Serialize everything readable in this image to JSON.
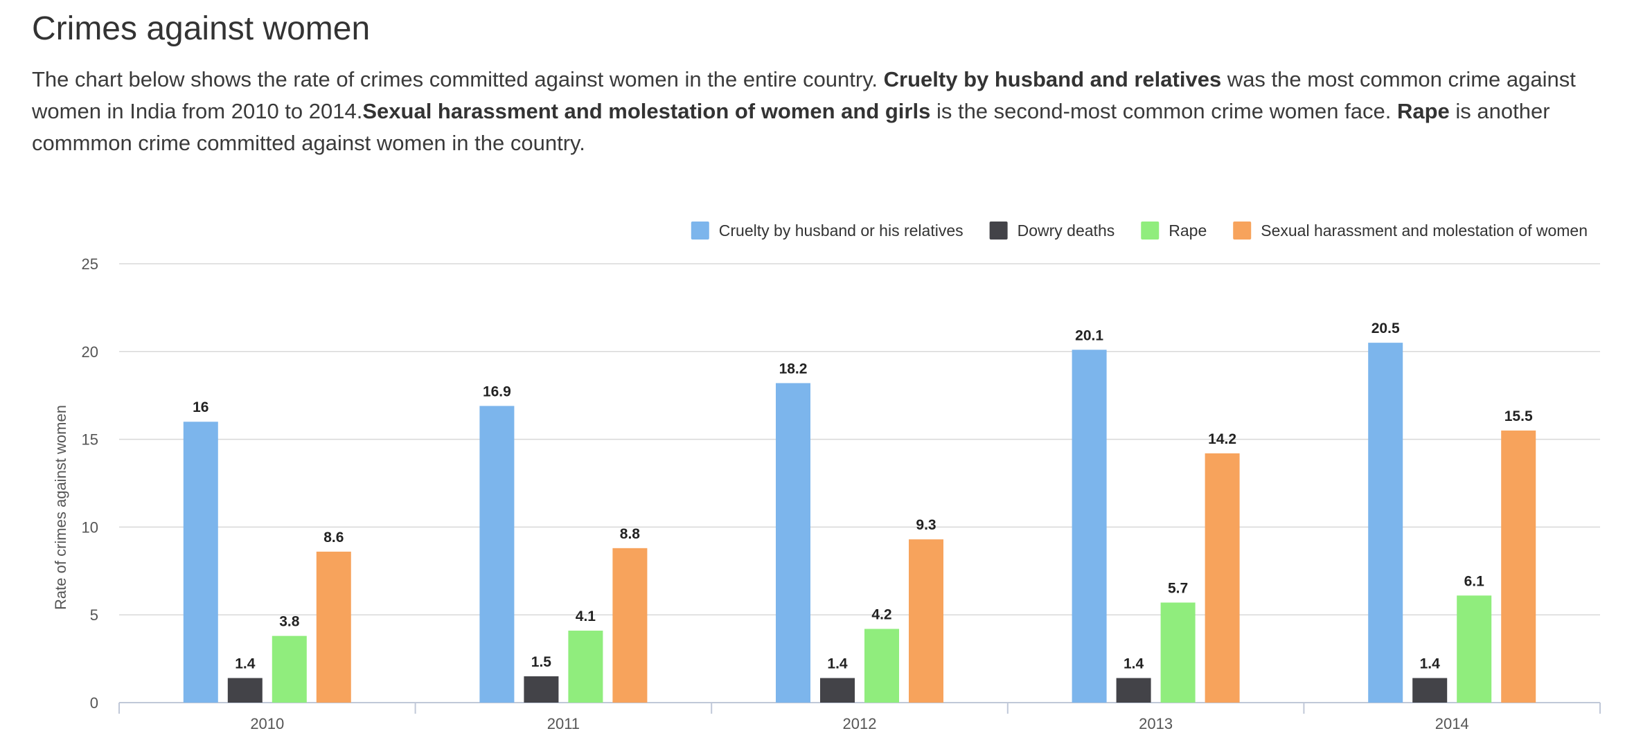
{
  "title": "Crimes against women",
  "description": {
    "p1": "The chart below shows the rate of crimes committed against women in the entire country. ",
    "b1": "Cruelty by husband and relatives",
    "p2": " was the most common crime against women in India from 2010 to 2014.",
    "b2": "Sexual harassment and molestation of women and girls",
    "p3": " is the second-most common crime women face. ",
    "b3": "Rape",
    "p4": " is another commmon crime committed against women in the country."
  },
  "chart_data": {
    "type": "bar",
    "categories": [
      "2010",
      "2011",
      "2012",
      "2013",
      "2014"
    ],
    "series": [
      {
        "name": "Cruelty by husband or his relatives",
        "color": "#7cb5ec",
        "values": [
          16,
          16.9,
          18.2,
          20.1,
          20.5
        ]
      },
      {
        "name": "Dowry deaths",
        "color": "#434348",
        "values": [
          1.4,
          1.5,
          1.4,
          1.4,
          1.4
        ]
      },
      {
        "name": "Rape",
        "color": "#90ed7d",
        "values": [
          3.8,
          4.1,
          4.2,
          5.7,
          6.1
        ]
      },
      {
        "name": "Sexual harassment and molestation of women",
        "color": "#f7a35c",
        "values": [
          8.6,
          8.8,
          9.3,
          14.2,
          15.5
        ]
      }
    ],
    "xlabel": "",
    "ylabel": "Rate of crimes against women",
    "ylim": [
      0,
      25
    ],
    "yticks": [
      0,
      5,
      10,
      15,
      20,
      25
    ],
    "grid": true,
    "legend": "top-right"
  }
}
